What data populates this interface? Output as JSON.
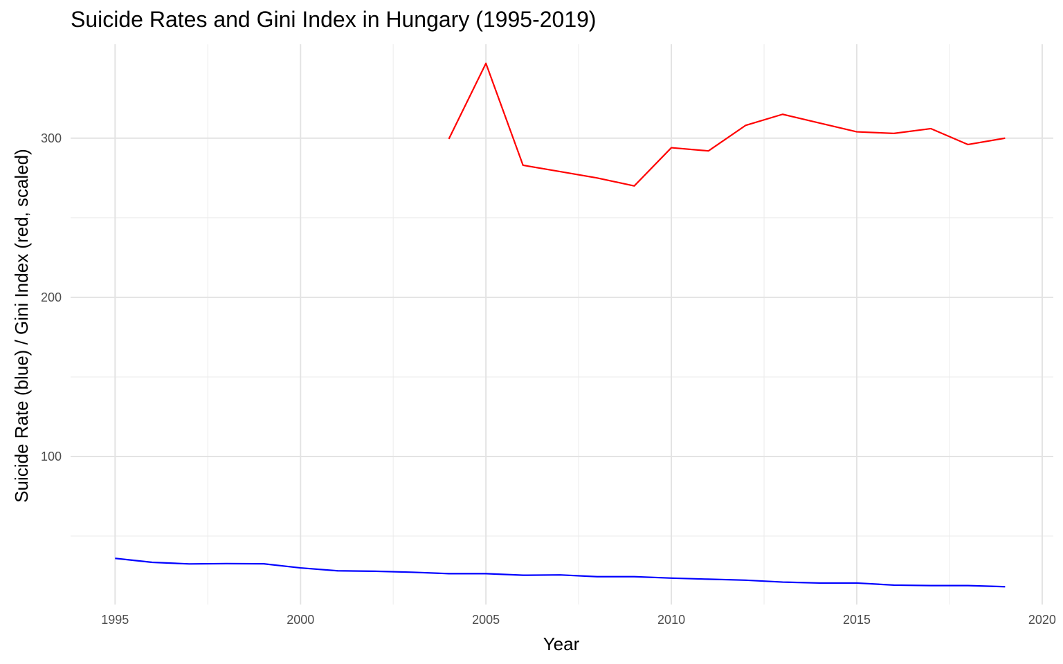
{
  "chart_data": {
    "type": "line",
    "title": "Suicide Rates and Gini Index in Hungary (1995-2019)",
    "xlabel": "Year",
    "ylabel": "Suicide Rate (blue) / Gini Index (red, scaled)",
    "xlim": [
      1993.8,
      2020.3
    ],
    "ylim": [
      7,
      359
    ],
    "x_ticks": [
      1995,
      2000,
      2005,
      2010,
      2015,
      2020
    ],
    "y_ticks": [
      100,
      200,
      300
    ],
    "grid": true,
    "legend": "none",
    "series": [
      {
        "color": "#0000ff",
        "points": [
          [
            1995,
            36.0
          ],
          [
            1996,
            33.5
          ],
          [
            1997,
            32.5
          ],
          [
            1998,
            32.7
          ],
          [
            1999,
            32.6
          ],
          [
            2000,
            30.0
          ],
          [
            2001,
            28.2
          ],
          [
            2002,
            27.9
          ],
          [
            2003,
            27.3
          ],
          [
            2004,
            26.4
          ],
          [
            2005,
            26.4
          ],
          [
            2006,
            25.4
          ],
          [
            2007,
            25.6
          ],
          [
            2008,
            24.5
          ],
          [
            2009,
            24.5
          ],
          [
            2010,
            23.6
          ],
          [
            2011,
            22.9
          ],
          [
            2012,
            22.3
          ],
          [
            2013,
            21.1
          ],
          [
            2014,
            20.5
          ],
          [
            2015,
            20.5
          ],
          [
            2016,
            19.2
          ],
          [
            2017,
            18.9
          ],
          [
            2018,
            18.9
          ],
          [
            2019,
            18.2
          ]
        ]
      },
      {
        "color": "#ff0000",
        "points": [
          [
            2004,
            299.5
          ],
          [
            2005,
            347.0
          ],
          [
            2006,
            283.0
          ],
          [
            2007,
            279.0
          ],
          [
            2008,
            275.0
          ],
          [
            2009,
            270.0
          ],
          [
            2010,
            294.0
          ],
          [
            2011,
            292.0
          ],
          [
            2012,
            308.0
          ],
          [
            2013,
            315.0
          ],
          [
            2014,
            309.5
          ],
          [
            2015,
            304.0
          ],
          [
            2016,
            303.0
          ],
          [
            2017,
            306.0
          ],
          [
            2018,
            296.0
          ],
          [
            2019,
            300.0
          ]
        ]
      }
    ]
  }
}
